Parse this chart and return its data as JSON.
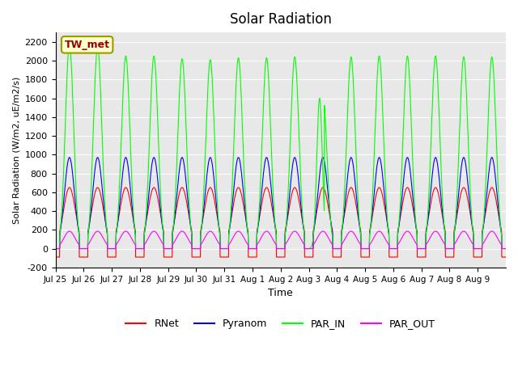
{
  "title": "Solar Radiation",
  "ylabel": "Solar Radiation (W/m2, uE/m2/s)",
  "xlabel": "Time",
  "annotation_label": "TW_met",
  "annotation_bg": "#ffffcc",
  "annotation_border": "#999900",
  "annotation_text_color": "#990000",
  "ylim": [
    -200,
    2300
  ],
  "yticks": [
    -200,
    0,
    200,
    400,
    600,
    800,
    1000,
    1200,
    1400,
    1600,
    1800,
    2000,
    2200
  ],
  "xtick_labels": [
    "Jul 25",
    "Jul 26",
    "Jul 27",
    "Jul 28",
    "Jul 29",
    "Jul 30",
    "Jul 31",
    "Aug 1",
    "Aug 2",
    "Aug 3",
    "Aug 4",
    "Aug 5",
    "Aug 6",
    "Aug 7",
    "Aug 8",
    "Aug 9"
  ],
  "legend_entries": [
    "RNet",
    "Pyranom",
    "PAR_IN",
    "PAR_OUT"
  ],
  "line_colors": [
    "#ff0000",
    "#0000ff",
    "#00ff00",
    "#ff00ff"
  ],
  "bg_color": "#e8e8e8",
  "n_days": 16,
  "points_per_day": 144,
  "rnet_peak": 650,
  "pyranom_peak": 970,
  "par_in_peaks": [
    2170,
    2150,
    2050,
    2050,
    2020,
    2010,
    2030,
    2030,
    2040,
    1620,
    2040,
    2050,
    2050,
    2050,
    2040,
    2040
  ],
  "par_out_peak": 185,
  "rnet_night": -90,
  "par_in_anomaly_day": 9,
  "par_in_anomaly_peak": 1600
}
